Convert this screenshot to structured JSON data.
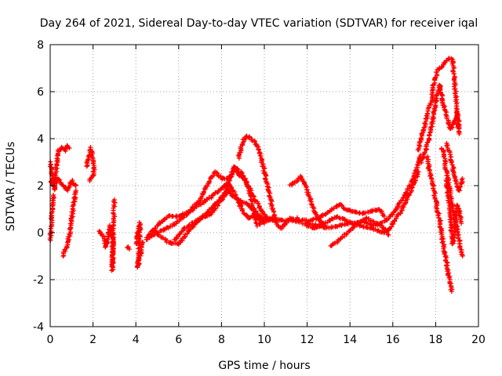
{
  "chart_data": {
    "type": "scatter",
    "title": "Day 264 of 2021, Sidereal Day-to-day VTEC variation (SDTVAR) for receiver iqal",
    "xlabel": "GPS time / hours",
    "ylabel": "SDTVAR / TECUs",
    "xlim": [
      0,
      20
    ],
    "ylim": [
      -4,
      8
    ],
    "xticks": [
      0,
      2,
      4,
      6,
      8,
      10,
      12,
      14,
      16,
      18,
      20
    ],
    "yticks": [
      -4,
      -2,
      0,
      2,
      4,
      6,
      8
    ],
    "grid": true,
    "marker": "+",
    "series_color": "#ff0000",
    "tracks": [
      {
        "name": "track-a",
        "points": [
          [
            0.0,
            3.0
          ],
          [
            0.1,
            2.4
          ],
          [
            0.2,
            1.8
          ],
          [
            0.3,
            2.9
          ],
          [
            0.4,
            3.5
          ],
          [
            0.5,
            3.6
          ],
          [
            0.6,
            3.6
          ],
          [
            0.7,
            3.5
          ],
          [
            0.8,
            3.7
          ],
          [
            0.9,
            3.6
          ]
        ]
      },
      {
        "name": "track-b",
        "points": [
          [
            0.0,
            2.2
          ],
          [
            0.2,
            2.0
          ],
          [
            0.4,
            2.3
          ],
          [
            0.6,
            2.0
          ],
          [
            0.8,
            1.8
          ],
          [
            1.0,
            2.2
          ],
          [
            1.2,
            2.0
          ]
        ]
      },
      {
        "name": "track-c",
        "points": [
          [
            0.0,
            -0.3
          ],
          [
            0.05,
            0.2
          ],
          [
            0.1,
            1.0
          ],
          [
            0.15,
            1.6
          ]
        ]
      },
      {
        "name": "track-d",
        "points": [
          [
            0.6,
            -1.0
          ],
          [
            0.75,
            -0.6
          ],
          [
            0.9,
            -0.1
          ],
          [
            1.0,
            0.5
          ],
          [
            1.1,
            1.2
          ],
          [
            1.2,
            1.8
          ]
        ]
      },
      {
        "name": "track-e",
        "points": [
          [
            1.7,
            2.8
          ],
          [
            1.8,
            3.3
          ],
          [
            1.9,
            3.6
          ],
          [
            2.0,
            3.0
          ],
          [
            2.05,
            2.5
          ],
          [
            1.85,
            2.2
          ]
        ]
      },
      {
        "name": "track-f",
        "points": [
          [
            2.3,
            0.1
          ],
          [
            2.5,
            -0.2
          ],
          [
            2.6,
            -0.6
          ],
          [
            2.8,
            0.3
          ],
          [
            2.9,
            -0.3
          ],
          [
            2.9,
            -1.6
          ],
          [
            3.0,
            1.4
          ]
        ]
      },
      {
        "name": "track-g",
        "points": [
          [
            3.6,
            -0.6
          ],
          [
            3.7,
            -0.7
          ]
        ]
      },
      {
        "name": "track-h",
        "points": [
          [
            4.0,
            -0.5
          ],
          [
            4.1,
            0.0
          ],
          [
            4.2,
            0.4
          ],
          [
            4.1,
            -1.5
          ],
          [
            4.3,
            -0.4
          ]
        ]
      },
      {
        "name": "track-i",
        "points": [
          [
            4.5,
            -0.2
          ],
          [
            5.0,
            0.3
          ],
          [
            5.5,
            0.7
          ],
          [
            6.0,
            0.7
          ],
          [
            6.5,
            0.9
          ],
          [
            7.0,
            1.4
          ],
          [
            7.5,
            2.3
          ],
          [
            7.7,
            2.6
          ],
          [
            8.0,
            2.3
          ],
          [
            8.3,
            2.3
          ],
          [
            8.5,
            2.5
          ],
          [
            8.6,
            2.8
          ],
          [
            9.0,
            2.5
          ],
          [
            9.3,
            1.8
          ],
          [
            9.5,
            0.8
          ],
          [
            9.7,
            0.3
          ],
          [
            10.0,
            0.6
          ],
          [
            10.5,
            0.5
          ]
        ]
      },
      {
        "name": "track-j",
        "points": [
          [
            4.8,
            0.1
          ],
          [
            5.5,
            -0.4
          ],
          [
            6.0,
            -0.5
          ],
          [
            6.5,
            0.1
          ],
          [
            7.0,
            0.6
          ],
          [
            7.5,
            0.8
          ],
          [
            8.0,
            1.4
          ],
          [
            8.3,
            1.8
          ],
          [
            8.6,
            1.5
          ],
          [
            9.0,
            1.3
          ],
          [
            9.5,
            1.0
          ],
          [
            10.0,
            0.5
          ]
        ]
      },
      {
        "name": "track-k",
        "points": [
          [
            4.5,
            -0.3
          ],
          [
            5.0,
            0.0
          ],
          [
            5.5,
            0.2
          ],
          [
            6.0,
            0.5
          ],
          [
            6.5,
            0.9
          ],
          [
            7.0,
            1.2
          ],
          [
            7.5,
            1.5
          ],
          [
            8.0,
            1.9
          ],
          [
            8.3,
            2.1
          ],
          [
            8.6,
            1.7
          ],
          [
            8.8,
            1.3
          ],
          [
            9.0,
            0.9
          ],
          [
            9.3,
            0.6
          ],
          [
            9.6,
            0.8
          ],
          [
            10.0,
            0.4
          ]
        ]
      },
      {
        "name": "track-l",
        "points": [
          [
            5.8,
            -0.3
          ],
          [
            6.3,
            0.2
          ],
          [
            6.8,
            0.5
          ],
          [
            7.3,
            0.8
          ],
          [
            7.8,
            1.3
          ],
          [
            8.2,
            1.7
          ],
          [
            8.4,
            2.3
          ],
          [
            8.6,
            2.8
          ],
          [
            8.8,
            2.5
          ],
          [
            9.1,
            2.2
          ],
          [
            9.3,
            1.9
          ],
          [
            9.5,
            1.5
          ],
          [
            9.7,
            1.2
          ],
          [
            9.9,
            0.9
          ],
          [
            10.2,
            0.6
          ],
          [
            10.6,
            0.5
          ]
        ]
      },
      {
        "name": "track-m",
        "points": [
          [
            8.8,
            3.2
          ],
          [
            9.0,
            3.9
          ],
          [
            9.2,
            4.1
          ],
          [
            9.4,
            4.0
          ],
          [
            9.6,
            3.8
          ],
          [
            9.8,
            3.4
          ],
          [
            10.0,
            2.6
          ],
          [
            10.2,
            1.8
          ],
          [
            10.4,
            0.9
          ],
          [
            10.6,
            0.3
          ],
          [
            10.8,
            0.2
          ],
          [
            11.0,
            0.4
          ],
          [
            11.2,
            0.6
          ],
          [
            11.4,
            0.5
          ],
          [
            11.6,
            0.5
          ],
          [
            11.8,
            0.4
          ],
          [
            12.0,
            0.3
          ],
          [
            12.3,
            0.2
          ],
          [
            12.6,
            0.3
          ],
          [
            13.0,
            0.5
          ],
          [
            13.4,
            0.7
          ],
          [
            13.8,
            0.5
          ],
          [
            14.2,
            0.4
          ],
          [
            14.6,
            0.5
          ],
          [
            15.0,
            0.3
          ],
          [
            15.5,
            0.4
          ],
          [
            16.0,
            0.8
          ],
          [
            16.5,
            1.5
          ],
          [
            17.0,
            2.4
          ],
          [
            17.3,
            3.3
          ]
        ]
      },
      {
        "name": "track-n",
        "points": [
          [
            9.5,
            0.7
          ],
          [
            10.0,
            0.5
          ],
          [
            10.5,
            0.6
          ],
          [
            11.0,
            0.5
          ],
          [
            11.5,
            0.6
          ],
          [
            12.0,
            0.5
          ],
          [
            12.5,
            0.6
          ],
          [
            13.0,
            0.9
          ],
          [
            13.5,
            1.2
          ],
          [
            13.8,
            1.0
          ],
          [
            14.2,
            0.9
          ],
          [
            14.6,
            0.8
          ],
          [
            15.0,
            0.9
          ],
          [
            15.4,
            1.0
          ],
          [
            15.6,
            0.7
          ]
        ]
      },
      {
        "name": "track-o",
        "points": [
          [
            11.2,
            2.0
          ],
          [
            11.5,
            2.2
          ],
          [
            11.7,
            2.4
          ],
          [
            11.9,
            2.1
          ],
          [
            12.1,
            1.5
          ],
          [
            12.3,
            1.0
          ],
          [
            12.5,
            0.6
          ],
          [
            12.8,
            0.3
          ]
        ]
      },
      {
        "name": "track-p",
        "points": [
          [
            13.1,
            -0.6
          ],
          [
            13.5,
            -0.3
          ],
          [
            14.0,
            0.1
          ],
          [
            14.4,
            0.4
          ],
          [
            14.8,
            0.6
          ],
          [
            15.2,
            0.4
          ],
          [
            15.6,
            0.2
          ],
          [
            15.8,
            -0.1
          ]
        ]
      },
      {
        "name": "track-q",
        "points": [
          [
            12.0,
            0.4
          ],
          [
            12.5,
            0.3
          ],
          [
            13.0,
            0.2
          ],
          [
            13.5,
            0.3
          ],
          [
            14.0,
            0.4
          ],
          [
            14.5,
            0.3
          ],
          [
            15.0,
            0.2
          ],
          [
            15.5,
            0.0
          ],
          [
            15.8,
            0.1
          ],
          [
            16.0,
            0.4
          ],
          [
            16.3,
            0.8
          ],
          [
            16.6,
            1.3
          ],
          [
            16.9,
            1.9
          ],
          [
            17.2,
            2.6
          ]
        ]
      },
      {
        "name": "track-r",
        "points": [
          [
            17.2,
            3.5
          ],
          [
            17.3,
            4.0
          ],
          [
            17.5,
            4.6
          ],
          [
            17.6,
            5.0
          ],
          [
            17.8,
            5.6
          ],
          [
            17.9,
            6.3
          ],
          [
            18.0,
            6.6
          ],
          [
            18.1,
            6.9
          ],
          [
            18.3,
            7.1
          ],
          [
            18.5,
            7.3
          ],
          [
            18.6,
            7.4
          ],
          [
            18.7,
            7.4
          ],
          [
            18.8,
            7.3
          ],
          [
            18.9,
            6.2
          ],
          [
            19.0,
            5.0
          ],
          [
            19.1,
            4.2
          ]
        ]
      },
      {
        "name": "track-s",
        "points": [
          [
            17.3,
            3.0
          ],
          [
            17.5,
            3.4
          ],
          [
            17.7,
            4.0
          ],
          [
            17.8,
            4.5
          ],
          [
            17.9,
            5.0
          ],
          [
            18.0,
            5.5
          ],
          [
            18.1,
            6.0
          ],
          [
            18.2,
            6.3
          ],
          [
            18.3,
            5.8
          ],
          [
            18.4,
            5.3
          ],
          [
            18.5,
            5.0
          ],
          [
            18.6,
            4.7
          ],
          [
            18.7,
            4.4
          ],
          [
            18.8,
            4.5
          ],
          [
            18.9,
            4.8
          ],
          [
            19.0,
            5.1
          ],
          [
            19.1,
            4.5
          ]
        ]
      },
      {
        "name": "track-t",
        "points": [
          [
            17.6,
            3.2
          ],
          [
            17.7,
            2.7
          ],
          [
            17.8,
            2.3
          ],
          [
            17.9,
            1.9
          ],
          [
            18.0,
            1.4
          ],
          [
            18.1,
            0.9
          ],
          [
            18.2,
            0.5
          ],
          [
            18.3,
            -0.2
          ],
          [
            18.4,
            -0.8
          ],
          [
            18.5,
            -1.2
          ],
          [
            18.6,
            -1.8
          ],
          [
            18.7,
            -2.2
          ],
          [
            18.75,
            -2.5
          ]
        ]
      },
      {
        "name": "track-u",
        "points": [
          [
            18.3,
            3.6
          ],
          [
            18.4,
            3.2
          ],
          [
            18.5,
            2.6
          ],
          [
            18.6,
            2.1
          ],
          [
            18.7,
            1.6
          ],
          [
            18.8,
            1.0
          ],
          [
            18.9,
            0.6
          ],
          [
            19.0,
            0.2
          ],
          [
            19.1,
            -0.3
          ],
          [
            19.2,
            -0.8
          ],
          [
            19.25,
            -1.0
          ]
        ]
      },
      {
        "name": "track-v",
        "points": [
          [
            18.5,
            3.8
          ],
          [
            18.6,
            3.5
          ],
          [
            18.7,
            3.2
          ],
          [
            18.8,
            2.8
          ],
          [
            18.9,
            2.4
          ],
          [
            19.0,
            2.0
          ],
          [
            19.1,
            1.8
          ],
          [
            19.2,
            2.1
          ],
          [
            19.25,
            2.3
          ]
        ]
      },
      {
        "name": "track-w",
        "points": [
          [
            18.5,
            2.2
          ],
          [
            18.6,
            1.5
          ],
          [
            18.7,
            0.6
          ],
          [
            18.8,
            -0.5
          ],
          [
            18.9,
            0.3
          ],
          [
            19.0,
            1.2
          ],
          [
            19.1,
            0.9
          ],
          [
            19.2,
            0.4
          ]
        ]
      }
    ]
  }
}
